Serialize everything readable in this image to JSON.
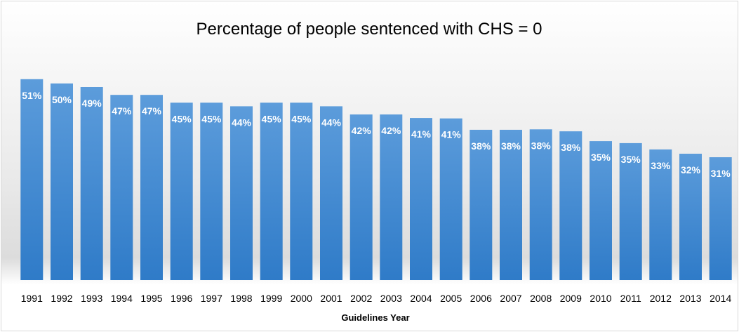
{
  "chart_data": {
    "type": "bar",
    "title": "Percentage of people sentenced with CHS = 0",
    "xlabel": "Guidelines Year",
    "ylabel": "",
    "categories": [
      "1991",
      "1992",
      "1993",
      "1994",
      "1995",
      "1996",
      "1997",
      "1998",
      "1999",
      "2000",
      "2001",
      "2002",
      "2003",
      "2004",
      "2005",
      "2006",
      "2007",
      "2008",
      "2009",
      "2010",
      "2011",
      "2012",
      "2013",
      "2014"
    ],
    "values": [
      51.2,
      50.1,
      49.2,
      47.2,
      47.2,
      45.2,
      45.2,
      44.3,
      45.2,
      45.2,
      44.3,
      42.2,
      42.2,
      41.3,
      41.2,
      38.3,
      38.3,
      38.4,
      37.9,
      35.4,
      34.9,
      33.3,
      32.2,
      31.3
    ],
    "data_labels": [
      "51%",
      "50%",
      "49%",
      "47%",
      "47%",
      "45%",
      "45%",
      "44%",
      "45%",
      "45%",
      "44%",
      "42%",
      "42%",
      "41%",
      "41%",
      "38%",
      "38%",
      "38%",
      "38%",
      "35%",
      "35%",
      "33%",
      "32%",
      "31%"
    ],
    "ylim": [
      0,
      60
    ],
    "grid": false,
    "legend": "none",
    "bar_color": "#4f8fd0",
    "bar_color_light": "#5c9cdb",
    "bar_color_dark": "#2f7bc8"
  }
}
